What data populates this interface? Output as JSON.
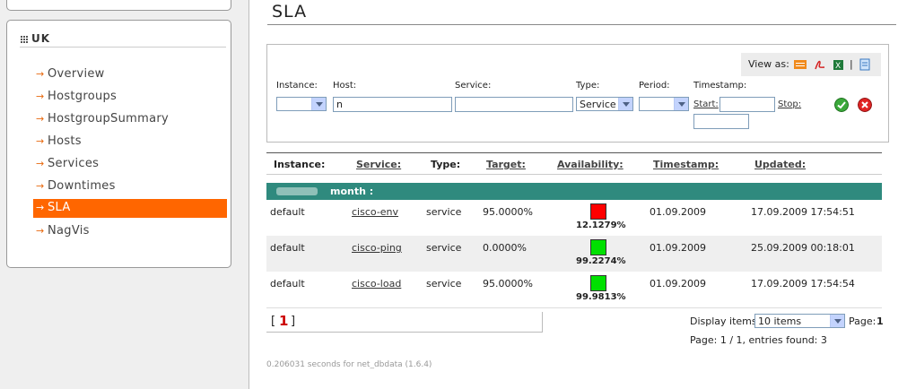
{
  "sidebar": {
    "title": "UK",
    "items": [
      {
        "label": "Overview",
        "active": false
      },
      {
        "label": "Hostgroups",
        "active": false
      },
      {
        "label": "HostgroupSummary",
        "active": false
      },
      {
        "label": "Hosts",
        "active": false
      },
      {
        "label": "Services",
        "active": false
      },
      {
        "label": "Downtimes",
        "active": false
      },
      {
        "label": "SLA",
        "active": true
      },
      {
        "label": "NagVis",
        "active": false
      }
    ]
  },
  "page": {
    "title": "SLA"
  },
  "filters": {
    "view_as_label": "View as:",
    "view_as_separator": "|",
    "instance_label": "Instance:",
    "instance_value": "",
    "host_label": "Host:",
    "host_value": "n",
    "service_label": "Service:",
    "service_value": "",
    "type_label": "Type:",
    "type_value": "Service",
    "period_label": "Period:",
    "period_value": "",
    "timestamp_label": "Timestamp:",
    "start_label": "Start:",
    "start_value": "",
    "stop_label": "Stop:",
    "stop_value": ""
  },
  "table": {
    "headers": {
      "instance": "Instance:",
      "service": "Service:",
      "type": "Type:",
      "target": "Target:",
      "availability": "Availability:",
      "timestamp": "Timestamp:",
      "updated": "Updated:"
    },
    "group_label": "month :",
    "rows": [
      {
        "instance": "default",
        "service": "cisco-env",
        "type": "service",
        "target": "95.0000%",
        "availability": "12.1279%",
        "status_color": "#ff0000",
        "timestamp": "01.09.2009",
        "updated": "17.09.2009 17:54:51"
      },
      {
        "instance": "default",
        "service": "cisco-ping",
        "type": "service",
        "target": "0.0000%",
        "availability": "99.2274%",
        "status_color": "#00e000",
        "timestamp": "01.09.2009",
        "updated": "25.09.2009 00:18:01"
      },
      {
        "instance": "default",
        "service": "cisco-load",
        "type": "service",
        "target": "95.0000%",
        "availability": "99.9813%",
        "status_color": "#00e000",
        "timestamp": "01.09.2009",
        "updated": "17.09.2009 17:54:54"
      }
    ]
  },
  "pagination": {
    "open_bracket": "[",
    "current_page": "1",
    "close_bracket": "]",
    "display_items_label": "Display items:",
    "display_items_value": "10 items",
    "page_label": "Page:",
    "page_value": "1",
    "summary": "Page: 1 / 1, entries found: 3"
  },
  "footer": {
    "timing": "0.206031 seconds for net_dbdata (1.6.4)"
  }
}
